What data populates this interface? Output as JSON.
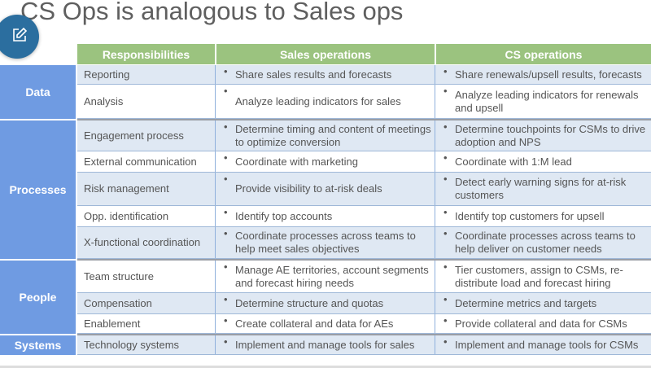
{
  "title": "CS Ops is analogous to Sales ops",
  "colors": {
    "header": "#9bc37f",
    "category": "#6f9be2",
    "row_alt": "#dfe8f3",
    "edit_button": "#2b6e9f"
  },
  "edit_button": {
    "icon": "edit-icon"
  },
  "headers": [
    "Responsibilities",
    "Sales operations",
    "CS operations"
  ],
  "categories": [
    {
      "label": "Data",
      "rows": [
        {
          "resp": "Reporting",
          "sales": "Share sales results and forecasts",
          "cs": "Share renewals/upsell results, forecasts"
        },
        {
          "resp": "Analysis",
          "sales": "Analyze leading indicators for sales",
          "cs": "Analyze leading indicators for renewals and upsell"
        }
      ]
    },
    {
      "label": "Processes",
      "rows": [
        {
          "resp": "Engagement process",
          "sales": "Determine timing and content of meetings to optimize conversion",
          "cs": "Determine touchpoints for CSMs to drive adoption and NPS"
        },
        {
          "resp": "External communication",
          "sales": "Coordinate with marketing",
          "cs": "Coordinate with 1:M lead"
        },
        {
          "resp": "Risk management",
          "sales": "Provide visibility to at-risk deals",
          "cs": "Detect early warning signs for at-risk customers"
        },
        {
          "resp": "Opp. identification",
          "sales": "Identify top accounts",
          "cs": "Identify top customers for upsell"
        },
        {
          "resp": "X-functional coordination",
          "sales": "Coordinate processes across teams to help meet sales objectives",
          "cs": "Coordinate processes across teams to help deliver on customer needs"
        }
      ]
    },
    {
      "label": "People",
      "rows": [
        {
          "resp": "Team structure",
          "sales": "Manage AE territories, account segments and forecast hiring needs",
          "cs": "Tier customers, assign to CSMs, re-distribute load and forecast hiring"
        },
        {
          "resp": "Compensation",
          "sales": "Determine structure and quotas",
          "cs": "Determine metrics and targets"
        },
        {
          "resp": "Enablement",
          "sales": "Create collateral and data for AEs",
          "cs": "Provide collateral and data for CSMs"
        }
      ]
    },
    {
      "label": "Systems",
      "rows": [
        {
          "resp": "Technology systems",
          "sales": "Implement and manage tools for sales",
          "cs": "Implement and manage tools for CSMs"
        }
      ]
    }
  ]
}
